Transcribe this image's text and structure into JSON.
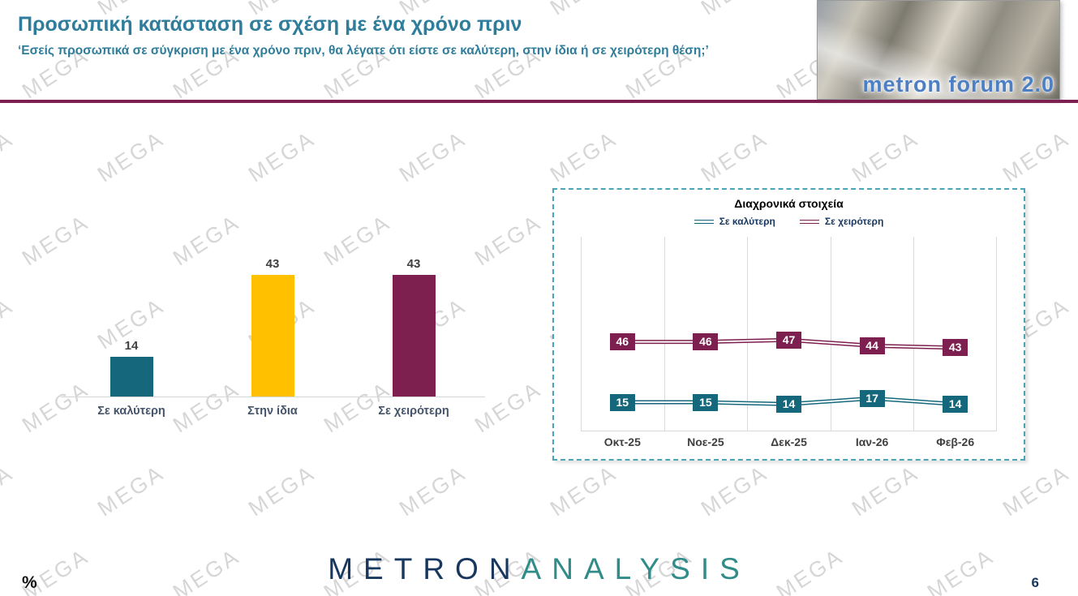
{
  "header": {
    "title": "Προσωπική κατάσταση σε σχέση με ένα χρόνο πριν",
    "subtitle": "‘Εσείς προσωπικά σε σύγκριση με ένα χρόνο πριν, θα λέγατε ότι είστε σε καλύτερη, στην ίδια ή σε χειρότερη θέση;’",
    "logo_text": "metron forum 2.0"
  },
  "watermark": {
    "text": "MEGA"
  },
  "footer": {
    "brand_primary": "METRON",
    "brand_secondary": "ANALYSIS",
    "unit_label": "%",
    "page_number": "6"
  },
  "colors": {
    "teal": "#15687c",
    "yellow": "#ffc000",
    "maroon": "#7d1f4f",
    "title_teal": "#2e7d9a",
    "divider_maroon": "#7d1f4f",
    "dashed_border": "#4aa5b5"
  },
  "chart_data": [
    {
      "type": "bar",
      "title": "Προσωπική κατάσταση σε σχέση με ένα χρόνο πριν",
      "categories": [
        "Σε καλύτερη",
        "Στην ίδια",
        "Σε χειρότερη"
      ],
      "values": [
        14,
        43,
        43
      ],
      "colors": [
        "#15687c",
        "#ffc000",
        "#7d1f4f"
      ],
      "ylim": [
        0,
        50
      ],
      "data_labels": true,
      "grid": false
    },
    {
      "type": "line",
      "title": "Διαχρονικά στοιχεία",
      "categories": [
        "Οκτ-25",
        "Νοε-25",
        "Δεκ-25",
        "Ιαν-26",
        "Φεβ-26"
      ],
      "series": [
        {
          "name": "Σε καλύτερη",
          "color": "#15687c",
          "values": [
            15,
            15,
            14,
            17,
            14
          ]
        },
        {
          "name": "Σε χειρότερη",
          "color": "#7d1f4f",
          "values": [
            46,
            46,
            47,
            44,
            43
          ]
        }
      ],
      "ylim": [
        0,
        100
      ],
      "legend_position": "top",
      "grid": "vertical",
      "data_labels": true
    }
  ]
}
